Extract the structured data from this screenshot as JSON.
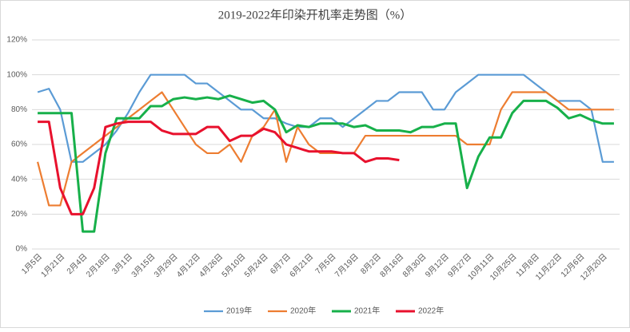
{
  "chart_data": {
    "type": "line",
    "title": "2019-2022年印染开机率走势图（%）",
    "categories": [
      "1月5日",
      null,
      "1月21日",
      null,
      "2月4日",
      null,
      "2月18日",
      null,
      "3月1日",
      null,
      "3月15日",
      null,
      "3月29日",
      null,
      "4月12日",
      null,
      "4月26日",
      null,
      "5月10日",
      null,
      "5月24日",
      null,
      "6月7日",
      null,
      "6月21日",
      null,
      "7月5日",
      null,
      "7月19日",
      null,
      "8月2日",
      null,
      "8月16日",
      null,
      "8月30日",
      null,
      "9月12日",
      null,
      "9月27日",
      null,
      "10月11日",
      null,
      "10月25日",
      null,
      "11月8日",
      null,
      "11月22日",
      null,
      "12月6日",
      null,
      "12月20日",
      null
    ],
    "series": [
      {
        "name": "2019年",
        "color": "#5b9bd5",
        "values": [
          90,
          92,
          80,
          50,
          50,
          55,
          60,
          68,
          78,
          90,
          100,
          100,
          100,
          100,
          95,
          95,
          90,
          85,
          80,
          80,
          75,
          75,
          72,
          70,
          70,
          75,
          75,
          70,
          75,
          80,
          85,
          85,
          90,
          90,
          90,
          80,
          80,
          90,
          95,
          100,
          100,
          100,
          100,
          100,
          95,
          90,
          85,
          85,
          85,
          80,
          50,
          50
        ]
      },
      {
        "name": "2020年",
        "color": "#ed7d31",
        "values": [
          50,
          25,
          25,
          50,
          55,
          60,
          65,
          70,
          75,
          80,
          85,
          90,
          80,
          70,
          60,
          55,
          55,
          60,
          50,
          65,
          70,
          80,
          50,
          70,
          60,
          55,
          55,
          55,
          55,
          65,
          65,
          65,
          65,
          65,
          65,
          65,
          65,
          65,
          60,
          60,
          60,
          80,
          90,
          90,
          90,
          90,
          85,
          80,
          80,
          80,
          80,
          80
        ]
      },
      {
        "name": "2021年",
        "color": "#17b04a",
        "values": [
          78,
          78,
          78,
          78,
          10,
          10,
          55,
          75,
          75,
          75,
          82,
          82,
          86,
          87,
          86,
          87,
          86,
          88,
          86,
          84,
          85,
          80,
          67,
          71,
          70,
          72,
          72,
          72,
          70,
          71,
          68,
          68,
          68,
          67,
          70,
          70,
          72,
          72,
          35,
          53,
          64,
          64,
          78,
          85,
          85,
          85,
          81,
          75,
          77,
          74,
          72,
          72
        ]
      },
      {
        "name": "2022年",
        "color": "#e8112d",
        "values": [
          73,
          73,
          35,
          20,
          20,
          35,
          70,
          72,
          73,
          73,
          73,
          68,
          66,
          66,
          66,
          70,
          70,
          62,
          65,
          65,
          69,
          67,
          60,
          58,
          56,
          56,
          56,
          55,
          55,
          50,
          52,
          52,
          51,
          null,
          null,
          null,
          null,
          null,
          null,
          null,
          null,
          null,
          null,
          null,
          null,
          null,
          null,
          null,
          null,
          null,
          null,
          null
        ]
      }
    ],
    "ylim": [
      0,
      120
    ],
    "yticks": [
      {
        "value": 0,
        "label": "0%"
      },
      {
        "value": 20,
        "label": "20%"
      },
      {
        "value": 40,
        "label": "40%"
      },
      {
        "value": 60,
        "label": "60%"
      },
      {
        "value": 80,
        "label": "80%"
      },
      {
        "value": 100,
        "label": "100%"
      },
      {
        "value": 120,
        "label": "120%"
      }
    ],
    "grid": true
  }
}
